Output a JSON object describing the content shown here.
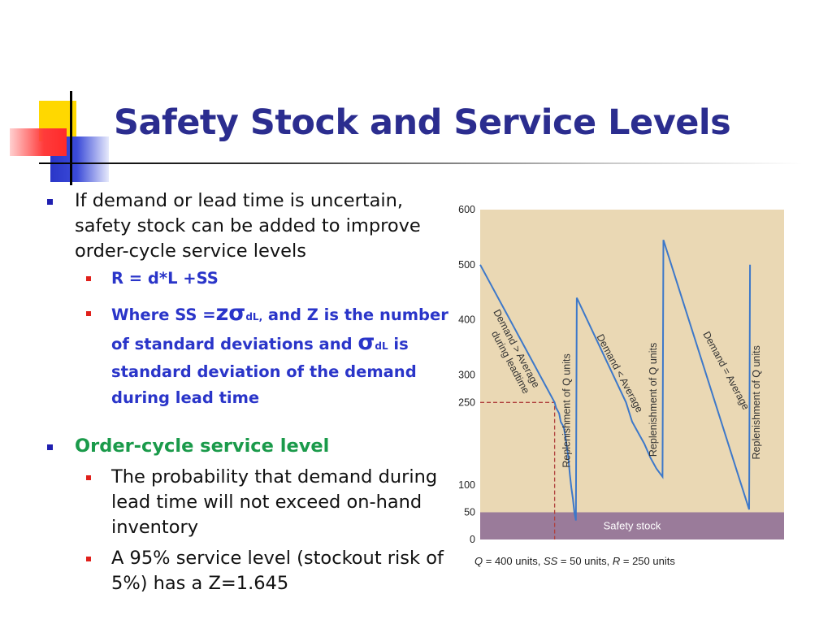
{
  "title": "Safety Stock and Service Levels",
  "bullets": {
    "b1": "If demand or lead time is uncertain, safety stock can be added to improve order-cycle service levels",
    "b1_1": "R = d*L +SS",
    "b1_2": {
      "prefix": "Where  SS =",
      "z_sigma": "zσ",
      "sub1": "dL,",
      "mid": " and Z is the number of standard deviations and ",
      "sigma": "σ",
      "sub2": "dL",
      "suffix": " is standard deviation of the demand during lead time"
    },
    "b2": "Order-cycle service level",
    "b2_1": "The probability that demand during lead time will not exceed on-hand inventory",
    "b2_2": "A 95% service level (stockout risk of 5%) has a Z=1.645"
  },
  "colors": {
    "title": "#2b2d8f",
    "sub_bullet_text": "#2a35c9",
    "green_bullet": "#1a9a4a",
    "chart_bg": "#ead8b4",
    "safety_band": "#9a7b9a",
    "line": "#3d78c9",
    "dashed": "#b0413e"
  },
  "chart_data": {
    "type": "line",
    "y_ticks": [
      0,
      50,
      100,
      250,
      300,
      400,
      500,
      600
    ],
    "ylim": [
      0,
      600
    ],
    "xlim": [
      0,
      100
    ],
    "safety_stock": 50,
    "reorder_point": 250,
    "safety_label": "Safety stock",
    "caption": {
      "q": "Q",
      "q_val": " = 400 units, ",
      "ss": "SS",
      "ss_val": " = 50 units, ",
      "r": "R",
      "r_val": " = 250 units"
    },
    "series": [
      {
        "points": [
          [
            0,
            500
          ],
          [
            24.5,
            250
          ],
          [
            25,
            240
          ],
          [
            25.5,
            235
          ],
          [
            26,
            230
          ],
          [
            26.5,
            215
          ],
          [
            27,
            210
          ],
          [
            27.5,
            205
          ],
          [
            28,
            190
          ],
          [
            28.5,
            170
          ],
          [
            29,
            150
          ],
          [
            29.5,
            120
          ],
          [
            30,
            95
          ],
          [
            30.5,
            75
          ],
          [
            31,
            50
          ],
          [
            31.5,
            35
          ],
          [
            31.8,
            440
          ],
          [
            48,
            250
          ],
          [
            50,
            215
          ],
          [
            52,
            195
          ],
          [
            54,
            175
          ],
          [
            56,
            150
          ],
          [
            58,
            130
          ],
          [
            60,
            115
          ],
          [
            60.3,
            545
          ],
          [
            88.5,
            55
          ],
          [
            88.8,
            500
          ]
        ]
      }
    ],
    "segment_labels": [
      {
        "text": "Demand > Average",
        "x": 11,
        "y": 345,
        "angle": 62
      },
      {
        "text": "during leadtime",
        "x": 9,
        "y": 320,
        "angle": 62
      },
      {
        "text": "Replenishment of Q units",
        "x": 29.5,
        "y": 235,
        "angle": -90
      },
      {
        "text": "Demand < Average",
        "x": 45,
        "y": 300,
        "angle": 62
      },
      {
        "text": "Replenishment of Q units",
        "x": 58,
        "y": 255,
        "angle": -90
      },
      {
        "text": "Demand = Average",
        "x": 80,
        "y": 305,
        "angle": 62
      },
      {
        "text": "Replenishment of Q units",
        "x": 92,
        "y": 250,
        "angle": -90
      }
    ]
  }
}
